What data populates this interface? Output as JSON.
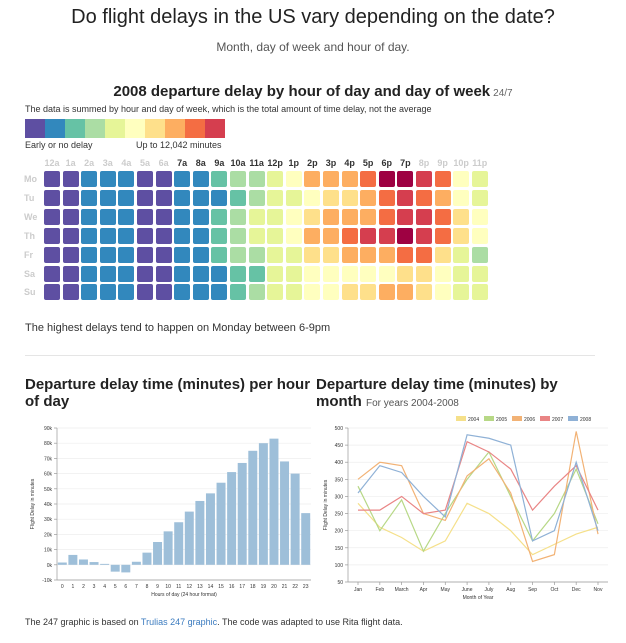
{
  "header": {
    "title": "Do flight delays in the US vary depending on the date?",
    "subtitle": "Month, day of week and hour of day."
  },
  "heatmap": {
    "title": "2008 departure delay by hour of day and day of week",
    "tag": "24/7",
    "description": "The data is summed by hour and day of week, which is the total amount of time delay, not the average",
    "legend_low": "Early or no delay",
    "legend_high": "Up to 12,042 minutes",
    "palette": [
      "#5e4fa2",
      "#3288bd",
      "#66c2a5",
      "#abdda4",
      "#e6f598",
      "#ffffbf",
      "#fee08b",
      "#fdae61",
      "#f46d43",
      "#d53e4f",
      "#9e0142"
    ],
    "hours": [
      "12a",
      "1a",
      "2a",
      "3a",
      "4a",
      "5a",
      "6a",
      "7a",
      "8a",
      "9a",
      "10a",
      "11a",
      "12p",
      "1p",
      "2p",
      "3p",
      "4p",
      "5p",
      "6p",
      "7p",
      "8p",
      "9p",
      "10p",
      "11p"
    ],
    "hour_colors": [
      "#ccc",
      "#ccc",
      "#ccc",
      "#ccc",
      "#ccc",
      "#ccc",
      "#ccc",
      "#333",
      "#333",
      "#333",
      "#333",
      "#333",
      "#333",
      "#333",
      "#333",
      "#333",
      "#333",
      "#333",
      "#333",
      "#333",
      "#ccc",
      "#ccc",
      "#ccc",
      "#ccc"
    ],
    "days": [
      "Mo",
      "Tu",
      "We",
      "Th",
      "Fr",
      "Sa",
      "Su"
    ],
    "levels": [
      [
        0,
        0,
        1,
        1,
        1,
        0,
        0,
        1,
        1,
        2,
        3,
        3,
        4,
        5,
        7,
        7,
        7,
        8,
        10,
        10,
        9,
        8,
        5,
        4
      ],
      [
        0,
        0,
        1,
        1,
        1,
        0,
        0,
        1,
        1,
        1,
        2,
        3,
        4,
        4,
        5,
        6,
        6,
        7,
        8,
        9,
        8,
        7,
        5,
        4
      ],
      [
        0,
        0,
        1,
        1,
        1,
        0,
        0,
        1,
        1,
        2,
        3,
        4,
        4,
        5,
        6,
        7,
        7,
        7,
        8,
        9,
        9,
        8,
        6,
        5
      ],
      [
        0,
        0,
        1,
        1,
        1,
        0,
        0,
        1,
        1,
        2,
        3,
        4,
        4,
        5,
        7,
        7,
        8,
        9,
        9,
        10,
        9,
        8,
        6,
        5
      ],
      [
        0,
        0,
        1,
        1,
        1,
        0,
        0,
        1,
        1,
        2,
        3,
        3,
        4,
        4,
        6,
        6,
        7,
        7,
        7,
        8,
        8,
        6,
        4,
        3
      ],
      [
        0,
        0,
        1,
        1,
        1,
        0,
        0,
        1,
        1,
        1,
        2,
        2,
        4,
        4,
        5,
        5,
        5,
        5,
        5,
        6,
        6,
        5,
        4,
        4
      ],
      [
        0,
        0,
        1,
        1,
        1,
        0,
        0,
        1,
        1,
        1,
        2,
        3,
        4,
        4,
        5,
        5,
        6,
        6,
        7,
        7,
        6,
        5,
        4,
        4
      ]
    ],
    "highlight": "The highest delays tend to happen on Monday between 6-9pm"
  },
  "hour_chart": {
    "title": "Departure delay time (minutes) per hour of day",
    "ylabel": "Flight Delay in minutes",
    "xlabel": "Hours of day (24 hour format)",
    "y_ticks": [
      "90k",
      "80k",
      "70k",
      "60k",
      "50k",
      "40k",
      "30k",
      "20k",
      "10k",
      "0k",
      "-10k"
    ],
    "x_ticks": [
      "0",
      "1",
      "2",
      "3",
      "4",
      "5",
      "6",
      "7",
      "8",
      "9",
      "10",
      "11",
      "12",
      "13",
      "14",
      "15",
      "16",
      "17",
      "18",
      "19",
      "20",
      "21",
      "22",
      "23"
    ]
  },
  "month_chart": {
    "title": "Departure delay time (minutes) by month",
    "years_note": "For years 2004-2008",
    "ylabel": "Flight Delay in minutes",
    "xlabel": "Month of Year",
    "y_ticks": [
      "500",
      "450",
      "400",
      "350",
      "300",
      "250",
      "200",
      "150",
      "100",
      "50"
    ],
    "x_ticks": [
      "Jan",
      "Feb",
      "March",
      "Apr",
      "May",
      "June",
      "July",
      "Aug",
      "Sep",
      "Oct",
      "Dec",
      "Nov"
    ]
  },
  "chart_data": [
    {
      "type": "bar",
      "title": "Departure delay time (minutes) per hour of day",
      "xlabel": "Hours of day (24 hour format)",
      "ylabel": "Flight Delay in minutes",
      "categories": [
        "0",
        "1",
        "2",
        "3",
        "4",
        "5",
        "6",
        "7",
        "8",
        "9",
        "10",
        "11",
        "12",
        "13",
        "14",
        "15",
        "16",
        "17",
        "18",
        "19",
        "20",
        "21",
        "22",
        "23"
      ],
      "values": [
        1500,
        6500,
        3500,
        1800,
        600,
        -4500,
        -5000,
        2000,
        8000,
        15000,
        22000,
        28000,
        35000,
        42000,
        47000,
        54000,
        61000,
        67000,
        75000,
        80000,
        83000,
        68000,
        60000,
        34000
      ],
      "ylim": [
        -10000,
        90000
      ],
      "color": "#9ebfd9"
    },
    {
      "type": "line",
      "title": "Departure delay time (minutes) by month",
      "xlabel": "Month of Year",
      "ylabel": "Flight Delay in minutes",
      "categories": [
        "Jan",
        "Feb",
        "March",
        "Apr",
        "May",
        "June",
        "July",
        "Aug",
        "Sep",
        "Oct",
        "Dec",
        "Nov"
      ],
      "ylim": [
        50,
        500
      ],
      "series": [
        {
          "name": "2004",
          "color": "#f5e08a",
          "values": [
            280,
            210,
            180,
            140,
            170,
            280,
            250,
            200,
            130,
            160,
            190,
            210
          ]
        },
        {
          "name": "2005",
          "color": "#b7d886",
          "values": [
            330,
            200,
            290,
            140,
            250,
            350,
            430,
            300,
            170,
            250,
            380,
            220
          ]
        },
        {
          "name": "2006",
          "color": "#f2b275",
          "values": [
            350,
            400,
            390,
            250,
            230,
            360,
            410,
            310,
            110,
            130,
            490,
            190
          ]
        },
        {
          "name": "2007",
          "color": "#e98585",
          "values": [
            260,
            260,
            300,
            250,
            260,
            460,
            430,
            380,
            260,
            330,
            390,
            260
          ]
        },
        {
          "name": "2008",
          "color": "#8fb1d6",
          "values": [
            310,
            390,
            370,
            300,
            240,
            480,
            470,
            450,
            170,
            200,
            400,
            200
          ]
        }
      ]
    }
  ],
  "footer": {
    "prefix": "The 247 graphic is based on ",
    "link": "Trulias 247 graphic",
    "suffix": ". The code was adapted to use Rita flight data."
  }
}
